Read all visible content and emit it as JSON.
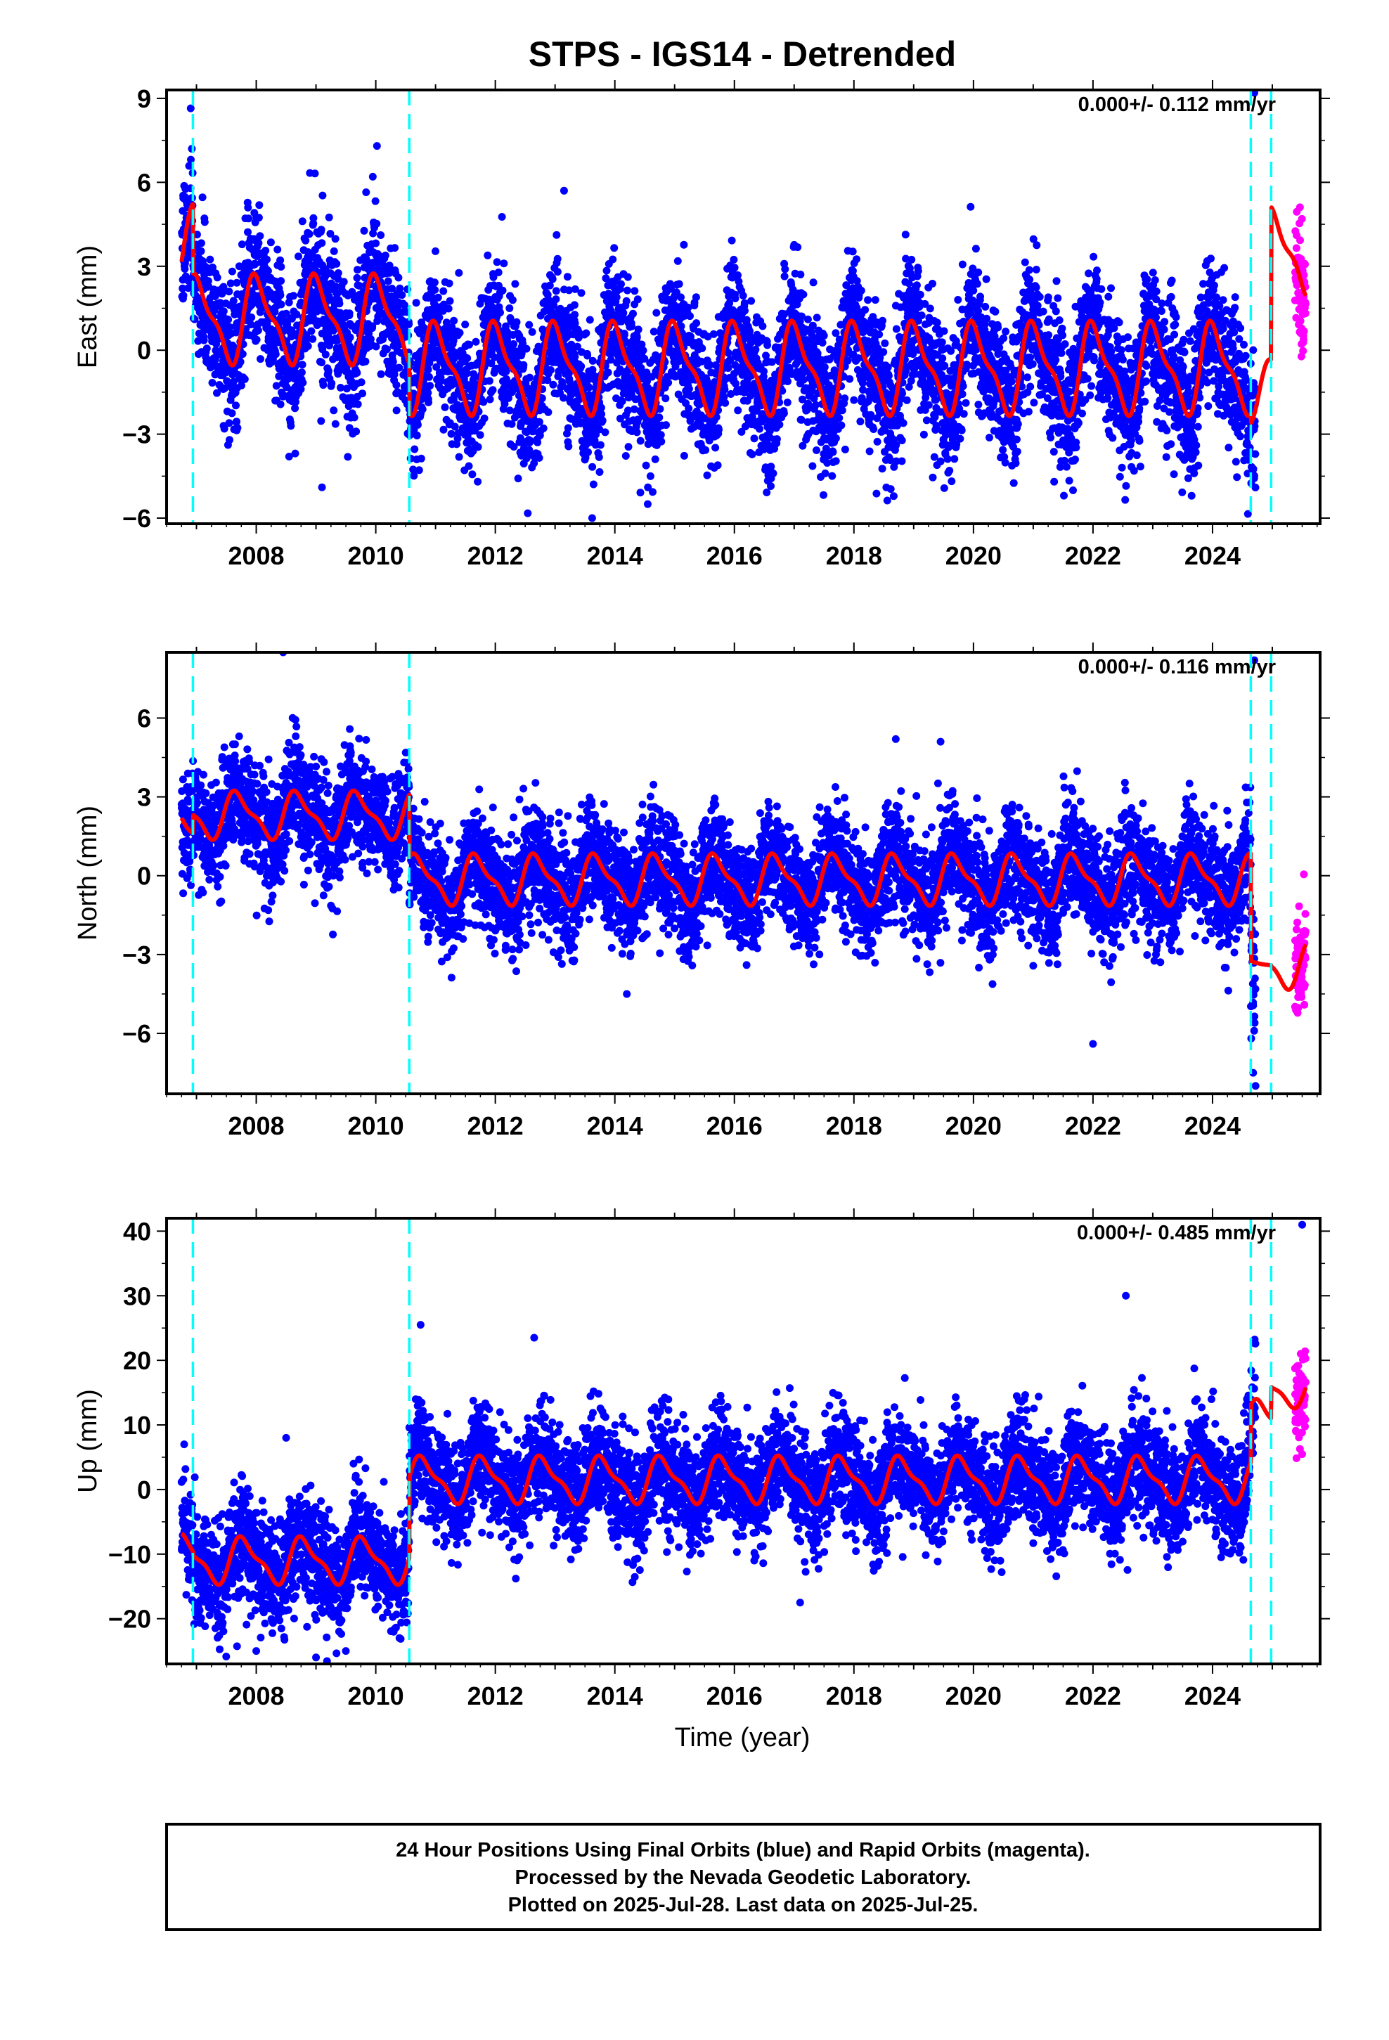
{
  "title": "STPS - IGS14 - Detrended",
  "colors": {
    "final_orbits": "#0000ff",
    "rapid_orbits": "#ff00ff",
    "model": "#ff0000",
    "steps": "#00ffff",
    "frame": "#000000"
  },
  "chart_data": {
    "type": "scatter",
    "xlabel": "Time (year)",
    "xlim": [
      2006.5,
      2025.8
    ],
    "x_ticks": [
      2008,
      2010,
      2012,
      2014,
      2016,
      2018,
      2020,
      2022,
      2024
    ],
    "x_tick_labels": [
      "2008",
      "2010",
      "2012",
      "2014",
      "2016",
      "2018",
      "2020",
      "2022",
      "2024"
    ],
    "data_start": 2006.75,
    "final_end": 2024.72,
    "last_data": 2025.56,
    "step_epochs": [
      2006.94,
      2010.56,
      2024.64,
      2024.98
    ],
    "panels": [
      {
        "name": "east",
        "ylabel": "East (mm)",
        "ylim": [
          -6.2,
          9.3
        ],
        "y_ticks": [
          -6,
          -3,
          0,
          3,
          6,
          9
        ],
        "y_tick_labels": [
          "−6",
          "−3",
          "0",
          "3",
          "6",
          "9"
        ],
        "rate_label": "0.000+/- 0.112 mm/yr",
        "scatter_sigma": 1.2,
        "model": {
          "segments": [
            {
              "t0": 2006.75,
              "t1": 2006.94,
              "offset": 3.6,
              "amp": 1.4
            },
            {
              "t0": 2006.94,
              "t1": 2010.56,
              "offset": 1.1,
              "amp": 1.4
            },
            {
              "t0": 2010.56,
              "t1": 2024.64,
              "offset": -0.65,
              "amp": 1.45
            },
            {
              "t0": 2024.64,
              "t1": 2024.98,
              "offset": -1.5,
              "amp": 1.0
            },
            {
              "t0": 2024.98,
              "t1": 2025.56,
              "offset": 3.5,
              "amp": 1.4
            }
          ],
          "phase": 0.78
        },
        "outliers": [
          [
            2010.02,
            7.3
          ],
          [
            2013.15,
            5.7
          ],
          [
            2009.95,
            6.2
          ],
          [
            2013.62,
            -6.0
          ],
          [
            2009.1,
            -4.9
          ],
          [
            2008.55,
            -3.8
          ],
          [
            2023.65,
            -5.2
          ],
          [
            2024.7,
            9.2
          ],
          [
            2021.35,
            -4.7
          ],
          [
            2014.55,
            -5.5
          ]
        ]
      },
      {
        "name": "north",
        "ylabel": "North (mm)",
        "ylim": [
          -8.3,
          8.5
        ],
        "y_ticks": [
          -6,
          -3,
          0,
          3,
          6
        ],
        "y_tick_labels": [
          "−6",
          "−3",
          "0",
          "3",
          "6"
        ],
        "rate_label": "0.000+/- 0.116 mm/yr",
        "scatter_sigma": 1.05,
        "model": {
          "segments": [
            {
              "t0": 2006.75,
              "t1": 2006.94,
              "offset": 1.6,
              "amp": 0.8
            },
            {
              "t0": 2006.94,
              "t1": 2010.56,
              "offset": 2.3,
              "amp": 0.8
            },
            {
              "t0": 2010.56,
              "t1": 2024.64,
              "offset": -0.15,
              "amp": 0.85
            },
            {
              "t0": 2024.64,
              "t1": 2024.98,
              "offset": -3.4,
              "amp": 0.1
            },
            {
              "t0": 2024.98,
              "t1": 2025.56,
              "offset": -3.4,
              "amp": 0.8
            }
          ],
          "phase": 0.45
        },
        "outliers": [
          [
            2008.45,
            8.5
          ],
          [
            2024.7,
            8.2
          ],
          [
            2024.72,
            -8.0
          ],
          [
            2024.68,
            -7.5
          ],
          [
            2022.0,
            -6.4
          ],
          [
            2014.2,
            -4.5
          ],
          [
            2018.7,
            5.2
          ],
          [
            2019.45,
            5.1
          ]
        ]
      },
      {
        "name": "up",
        "ylabel": "Up (mm)",
        "ylim": [
          -27,
          42
        ],
        "y_ticks": [
          -20,
          -10,
          0,
          10,
          20,
          30,
          40
        ],
        "y_tick_labels": [
          "−20",
          "−10",
          "0",
          "10",
          "20",
          "30",
          "40"
        ],
        "rate_label": "0.000+/- 0.485 mm/yr",
        "scatter_sigma": 4.2,
        "model": {
          "segments": [
            {
              "t0": 2006.75,
              "t1": 2006.94,
              "offset": -10.5,
              "amp": 3.2
            },
            {
              "t0": 2006.94,
              "t1": 2010.56,
              "offset": -11.0,
              "amp": 3.2
            },
            {
              "t0": 2010.56,
              "t1": 2024.64,
              "offset": 1.5,
              "amp": 3.2
            },
            {
              "t0": 2024.64,
              "t1": 2024.98,
              "offset": 10.5,
              "amp": 3.0
            },
            {
              "t0": 2024.98,
              "t1": 2025.56,
              "offset": 15.5,
              "amp": 2.5
            }
          ],
          "phase": 0.55
        },
        "outliers": [
          [
            2022.55,
            30.0
          ],
          [
            2010.75,
            25.5
          ],
          [
            2012.65,
            23.5
          ],
          [
            2025.5,
            41.0
          ],
          [
            2009.0,
            -26.0
          ],
          [
            2008.0,
            -25.0
          ],
          [
            2017.1,
            -17.5
          ],
          [
            2008.5,
            8.0
          ]
        ]
      }
    ]
  },
  "footer": {
    "line1": "24 Hour Positions Using Final Orbits (blue) and Rapid Orbits (magenta).",
    "line2": "Processed by the Nevada Geodetic Laboratory.",
    "line3": "Plotted on 2025-Jul-28. Last data on 2025-Jul-25."
  }
}
